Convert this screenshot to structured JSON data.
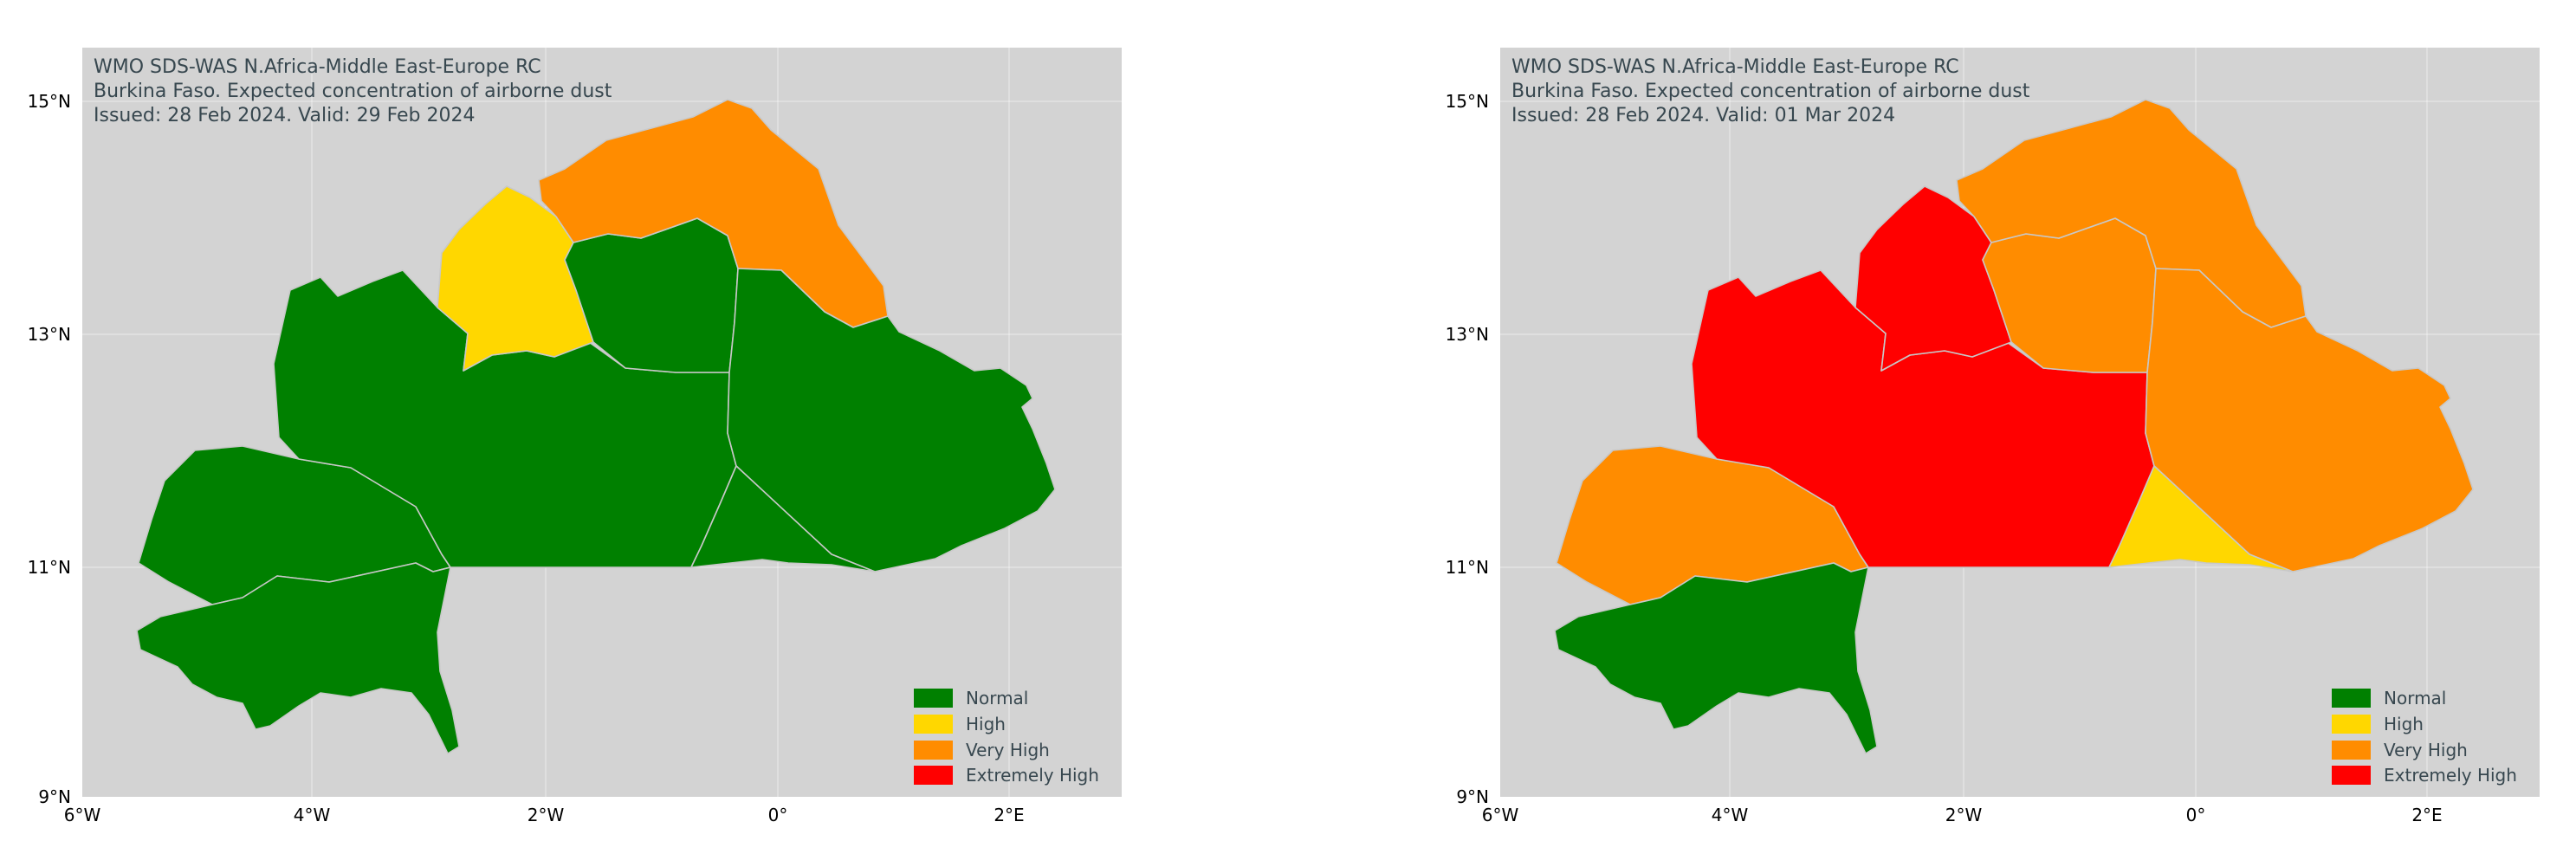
{
  "legend_items": [
    {
      "key": "normal",
      "label": "Normal",
      "color": "#008000"
    },
    {
      "key": "high",
      "label": "High",
      "color": "#ffd700"
    },
    {
      "key": "veryhigh",
      "label": "Very High",
      "color": "#ff8c00"
    },
    {
      "key": "extreme",
      "label": "Extremely High",
      "color": "#ff0000"
    }
  ],
  "axis": {
    "x_ticks": [
      "6°W",
      "4°W",
      "2°W",
      "0°",
      "2°E"
    ],
    "y_ticks": [
      "15°N",
      "13°N",
      "11°N",
      "9°N"
    ]
  },
  "colors": {
    "ocean_background": "#d3d3d3",
    "border_line": "#c8c8c8",
    "header_text": "#37474f"
  },
  "maps": [
    {
      "header": {
        "line1": "WMO SDS-WAS N.Africa-Middle East-Europe RC",
        "line2": "Burkina Faso. Expected concentration of airborne dust",
        "line3": "Issued: 28 Feb 2024. Valid: 29 Feb 2024"
      },
      "regions": {
        "west": "normal",
        "south": "normal",
        "center": "normal",
        "northwest": "high",
        "north": "normal",
        "sahel": "veryhigh",
        "east": "normal",
        "centereast": "normal"
      }
    },
    {
      "header": {
        "line1": "WMO SDS-WAS N.Africa-Middle East-Europe RC",
        "line2": "Burkina Faso. Expected concentration of airborne dust",
        "line3": "Issued: 28 Feb 2024. Valid: 01 Mar 2024"
      },
      "regions": {
        "west": "veryhigh",
        "south": "normal",
        "center": "extreme",
        "northwest": "extreme",
        "north": "veryhigh",
        "sahel": "veryhigh",
        "east": "veryhigh",
        "centereast": "high"
      }
    }
  ]
}
